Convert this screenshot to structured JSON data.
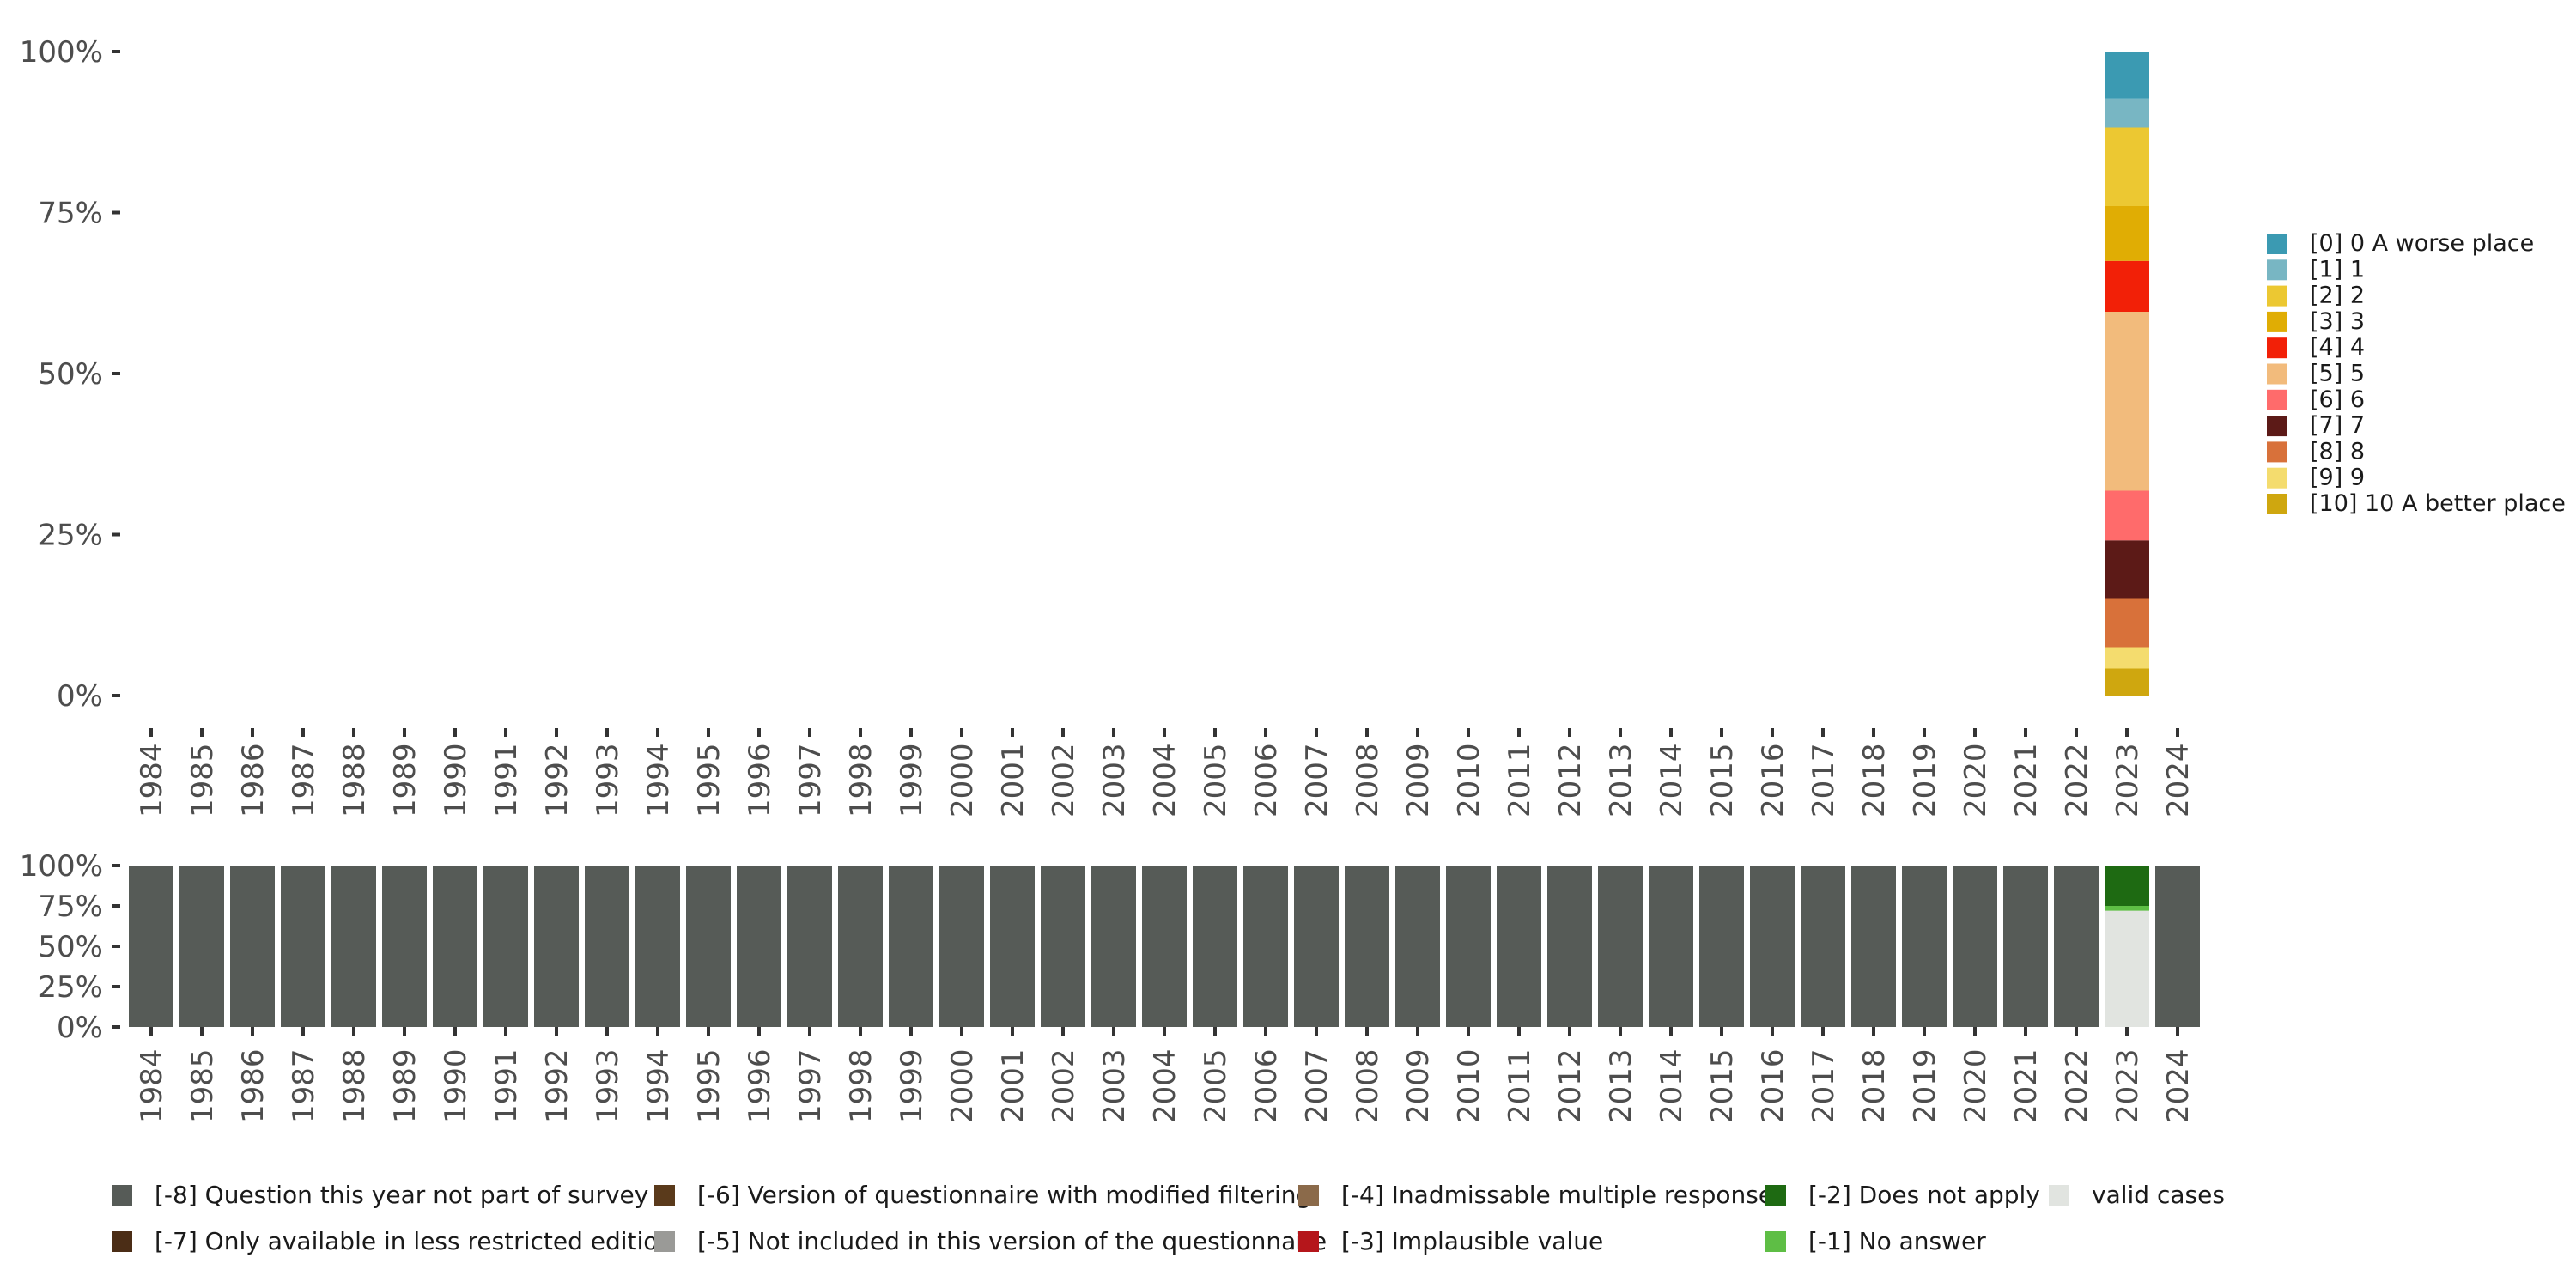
{
  "chart_data": [
    {
      "type": "bar",
      "stacked": true,
      "categories": [
        "1984",
        "1985",
        "1986",
        "1987",
        "1988",
        "1989",
        "1990",
        "1991",
        "1992",
        "1993",
        "1994",
        "1995",
        "1996",
        "1997",
        "1998",
        "1999",
        "2000",
        "2001",
        "2002",
        "2003",
        "2004",
        "2005",
        "2006",
        "2007",
        "2008",
        "2009",
        "2010",
        "2011",
        "2012",
        "2013",
        "2014",
        "2015",
        "2016",
        "2017",
        "2018",
        "2019",
        "2020",
        "2021",
        "2022",
        "2023",
        "2024"
      ],
      "ylim": [
        0,
        100
      ],
      "yticks": [
        "0%",
        "25%",
        "50%",
        "75%",
        "100%"
      ],
      "legend_position": "right",
      "grid": false,
      "series": [
        {
          "name": "[10] 10 A better place",
          "color": "#CFA70F",
          "values": {
            "2023": 4.2
          }
        },
        {
          "name": "[9] 9",
          "color": "#F4DC6E",
          "values": {
            "2023": 3.2
          }
        },
        {
          "name": "[8] 8",
          "color": "#D8713A",
          "values": {
            "2023": 7.6
          }
        },
        {
          "name": "[7] 7",
          "color": "#5C1A17",
          "values": {
            "2023": 9.1
          }
        },
        {
          "name": "[6] 6",
          "color": "#FF6B6B",
          "values": {
            "2023": 7.7
          }
        },
        {
          "name": "[5] 5",
          "color": "#F2BB7C",
          "values": {
            "2023": 27.8
          }
        },
        {
          "name": "[4] 4",
          "color": "#F22007",
          "values": {
            "2023": 7.9
          }
        },
        {
          "name": "[3] 3",
          "color": "#E0AD04",
          "values": {
            "2023": 8.5
          }
        },
        {
          "name": "[2] 2",
          "color": "#ECC832",
          "values": {
            "2023": 12.2
          }
        },
        {
          "name": "[1] 1",
          "color": "#78B6C3",
          "values": {
            "2023": 4.5
          }
        },
        {
          "name": "[0] 0 A worse place",
          "color": "#3B9AB2",
          "values": {
            "2023": 7.3
          }
        }
      ],
      "legend_order": [
        "[0] 0 A worse place",
        "[1] 1",
        "[2] 2",
        "[3] 3",
        "[4] 4",
        "[5] 5",
        "[6] 6",
        "[7] 7",
        "[8] 8",
        "[9] 9",
        "[10] 10 A better place"
      ]
    },
    {
      "type": "bar",
      "stacked": true,
      "categories": [
        "1984",
        "1985",
        "1986",
        "1987",
        "1988",
        "1989",
        "1990",
        "1991",
        "1992",
        "1993",
        "1994",
        "1995",
        "1996",
        "1997",
        "1998",
        "1999",
        "2000",
        "2001",
        "2002",
        "2003",
        "2004",
        "2005",
        "2006",
        "2007",
        "2008",
        "2009",
        "2010",
        "2011",
        "2012",
        "2013",
        "2014",
        "2015",
        "2016",
        "2017",
        "2018",
        "2019",
        "2020",
        "2021",
        "2022",
        "2023",
        "2024"
      ],
      "ylim": [
        0,
        100
      ],
      "yticks": [
        "0%",
        "25%",
        "50%",
        "75%",
        "100%"
      ],
      "legend_position": "bottom",
      "grid": false,
      "series": [
        {
          "name": "valid cases",
          "color": "#E1E4E0",
          "default": 0,
          "values": {
            "2023": 72
          }
        },
        {
          "name": "[-1] No answer",
          "color": "#5EBE45",
          "default": 0,
          "values": {
            "2023": 3
          }
        },
        {
          "name": "[-2] Does not apply",
          "color": "#1E6A12",
          "default": 0,
          "values": {
            "2023": 25
          }
        },
        {
          "name": "[-8] Question this year not part of survey",
          "color": "#565B57",
          "default": 100,
          "values": {
            "2023": 0
          }
        }
      ],
      "legend": [
        {
          "name": "[-8] Question this year not part of survey",
          "color": "#565B57"
        },
        {
          "name": "[-7] Only available in less restricted edition",
          "color": "#4B2D16"
        },
        {
          "name": "[-6] Version of questionnaire with modified filtering",
          "color": "#5A3A1B"
        },
        {
          "name": "[-5] Not included in this version of the questionnaire",
          "color": "#9A9A97"
        },
        {
          "name": "[-4] Inadmissable multiple response",
          "color": "#8B6A4A"
        },
        {
          "name": "[-3] Implausible value",
          "color": "#B5161B"
        },
        {
          "name": "[-2] Does not apply",
          "color": "#1E6A12"
        },
        {
          "name": "[-1] No answer",
          "color": "#5EBE45"
        },
        {
          "name": "valid cases",
          "color": "#E1E4E0"
        }
      ]
    }
  ]
}
